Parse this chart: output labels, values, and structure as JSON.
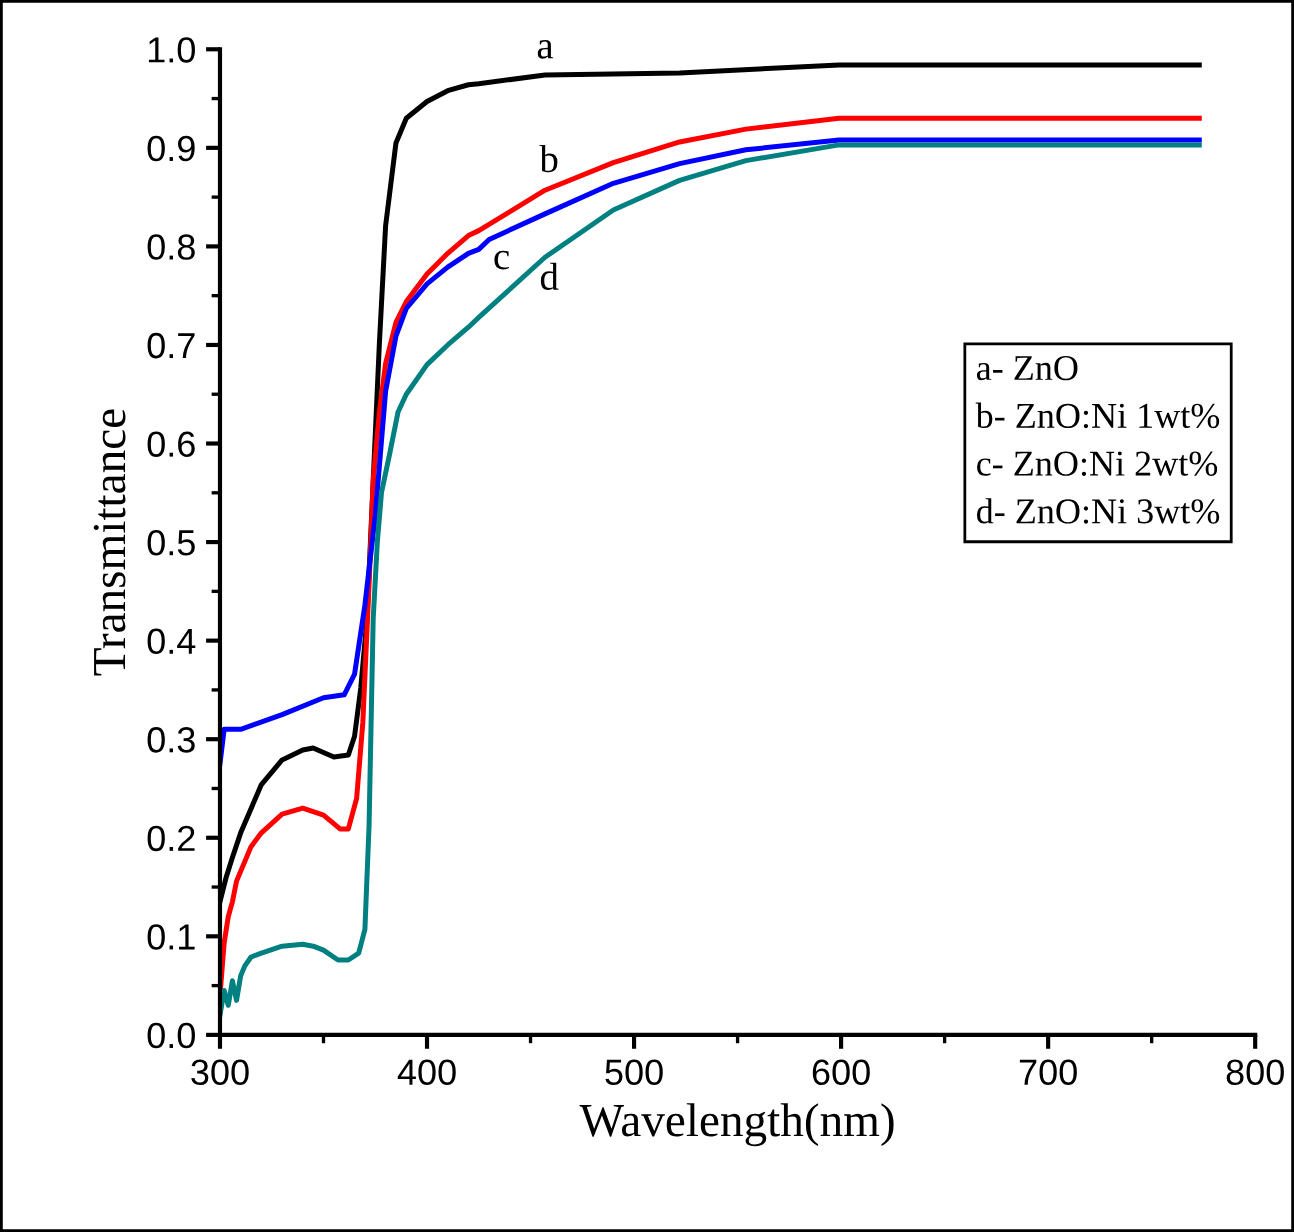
{
  "chart_data": {
    "type": "line",
    "xlabel": "Wavelength(nm)",
    "ylabel": "Transmittance",
    "xlim": [
      300,
      800
    ],
    "ylim": [
      0,
      1.0
    ],
    "xticks": [
      300,
      400,
      500,
      600,
      700,
      800
    ],
    "yticks": [
      {
        "value": 0,
        "label": "0.0"
      },
      0.1,
      0.2,
      0.3,
      0.4,
      0.5,
      0.6,
      0.7,
      0.8,
      0.9,
      {
        "value": 1.0,
        "label": "1.0"
      }
    ],
    "grid": false,
    "marker": "none",
    "line_style": "solid",
    "series": [
      {
        "name": "a",
        "color": "#000000",
        "x": [
          300,
          303,
          306,
          310,
          320,
          330,
          340,
          345,
          355,
          362,
          365,
          368,
          371,
          374,
          377,
          380,
          385,
          390,
          400,
          410,
          420,
          425,
          457,
          522,
          599,
          773
        ],
        "values": [
          0.135,
          0.16,
          0.18,
          0.205,
          0.254,
          0.279,
          0.289,
          0.291,
          0.282,
          0.284,
          0.303,
          0.352,
          0.422,
          0.562,
          0.702,
          0.821,
          0.905,
          0.93,
          0.947,
          0.958,
          0.964,
          0.965,
          0.974,
          0.976,
          0.984,
          0.984
        ]
      },
      {
        "name": "b",
        "color": "#ff0000",
        "x": [
          300,
          302,
          304,
          306,
          308,
          315,
          320,
          330,
          340,
          350,
          358,
          362,
          366,
          369,
          372,
          374,
          377,
          380,
          385,
          390,
          400,
          410,
          420,
          425,
          457,
          490,
          522,
          554,
          599,
          773
        ],
        "values": [
          0.04,
          0.093,
          0.12,
          0.135,
          0.156,
          0.191,
          0.205,
          0.224,
          0.23,
          0.223,
          0.209,
          0.209,
          0.24,
          0.317,
          0.457,
          0.562,
          0.632,
          0.681,
          0.723,
          0.744,
          0.772,
          0.793,
          0.811,
          0.816,
          0.857,
          0.885,
          0.906,
          0.919,
          0.93,
          0.93
        ]
      },
      {
        "name": "c",
        "color": "#0000ff",
        "x": [
          300,
          302,
          310,
          330,
          350,
          360,
          365,
          370,
          375,
          380,
          385,
          390,
          400,
          410,
          420,
          425,
          430,
          457,
          490,
          522,
          554,
          599,
          773
        ],
        "values": [
          0.275,
          0.31,
          0.31,
          0.325,
          0.342,
          0.345,
          0.366,
          0.436,
          0.527,
          0.653,
          0.709,
          0.737,
          0.762,
          0.779,
          0.793,
          0.797,
          0.807,
          0.833,
          0.864,
          0.884,
          0.898,
          0.908,
          0.908
        ]
      },
      {
        "name": "d",
        "color": "#008080",
        "x": [
          300,
          302,
          304,
          306,
          308,
          310,
          312,
          315,
          320,
          330,
          340,
          345,
          350,
          357,
          362,
          367,
          370,
          372,
          374,
          376,
          378,
          382,
          386,
          390,
          400,
          410,
          420,
          425,
          457,
          490,
          522,
          554,
          599,
          773
        ],
        "values": [
          0.02,
          0.045,
          0.03,
          0.055,
          0.035,
          0.06,
          0.07,
          0.079,
          0.083,
          0.09,
          0.092,
          0.09,
          0.086,
          0.076,
          0.076,
          0.083,
          0.107,
          0.212,
          0.422,
          0.5,
          0.55,
          0.59,
          0.632,
          0.65,
          0.68,
          0.7,
          0.718,
          0.728,
          0.789,
          0.837,
          0.867,
          0.887,
          0.903,
          0.903
        ]
      }
    ],
    "annotations": [
      "a- ZnO",
      "b- ZnO:Ni 1wt%",
      "c- ZnO:Ni 2wt%",
      "d- ZnO:Ni 3wt%"
    ]
  }
}
